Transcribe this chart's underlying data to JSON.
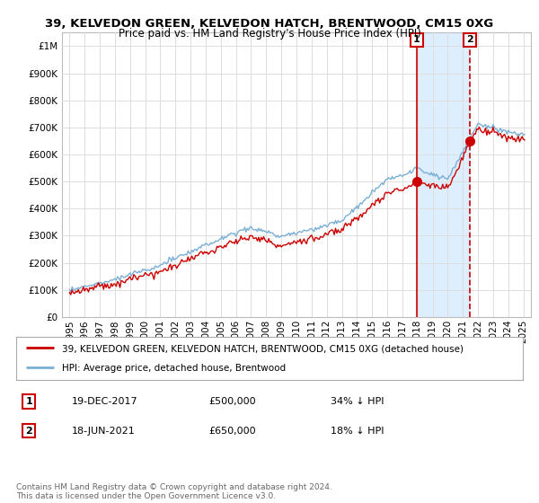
{
  "title": "39, KELVEDON GREEN, KELVEDON HATCH, BRENTWOOD, CM15 0XG",
  "subtitle": "Price paid vs. HM Land Registry's House Price Index (HPI)",
  "legend_line1": "39, KELVEDON GREEN, KELVEDON HATCH, BRENTWOOD, CM15 0XG (detached house)",
  "legend_line2": "HPI: Average price, detached house, Brentwood",
  "sale1_date": "19-DEC-2017",
  "sale1_price": 500000,
  "sale1_label": "34% ↓ HPI",
  "sale1_year": 2017.96,
  "sale2_date": "18-JUN-2021",
  "sale2_price": 650000,
  "sale2_label": "18% ↓ HPI",
  "sale2_year": 2021.46,
  "footnote": "Contains HM Land Registry data © Crown copyright and database right 2024.\nThis data is licensed under the Open Government Licence v3.0.",
  "hpi_color": "#7bafd4",
  "hpi_fill_color": "#ddeeff",
  "price_color": "#cc0000",
  "marker_color": "#cc0000",
  "ylim_min": 0,
  "ylim_max": 1050000,
  "xlim_min": 1994.5,
  "xlim_max": 2025.5,
  "background_color": "#ffffff",
  "grid_color": "#dddddd"
}
